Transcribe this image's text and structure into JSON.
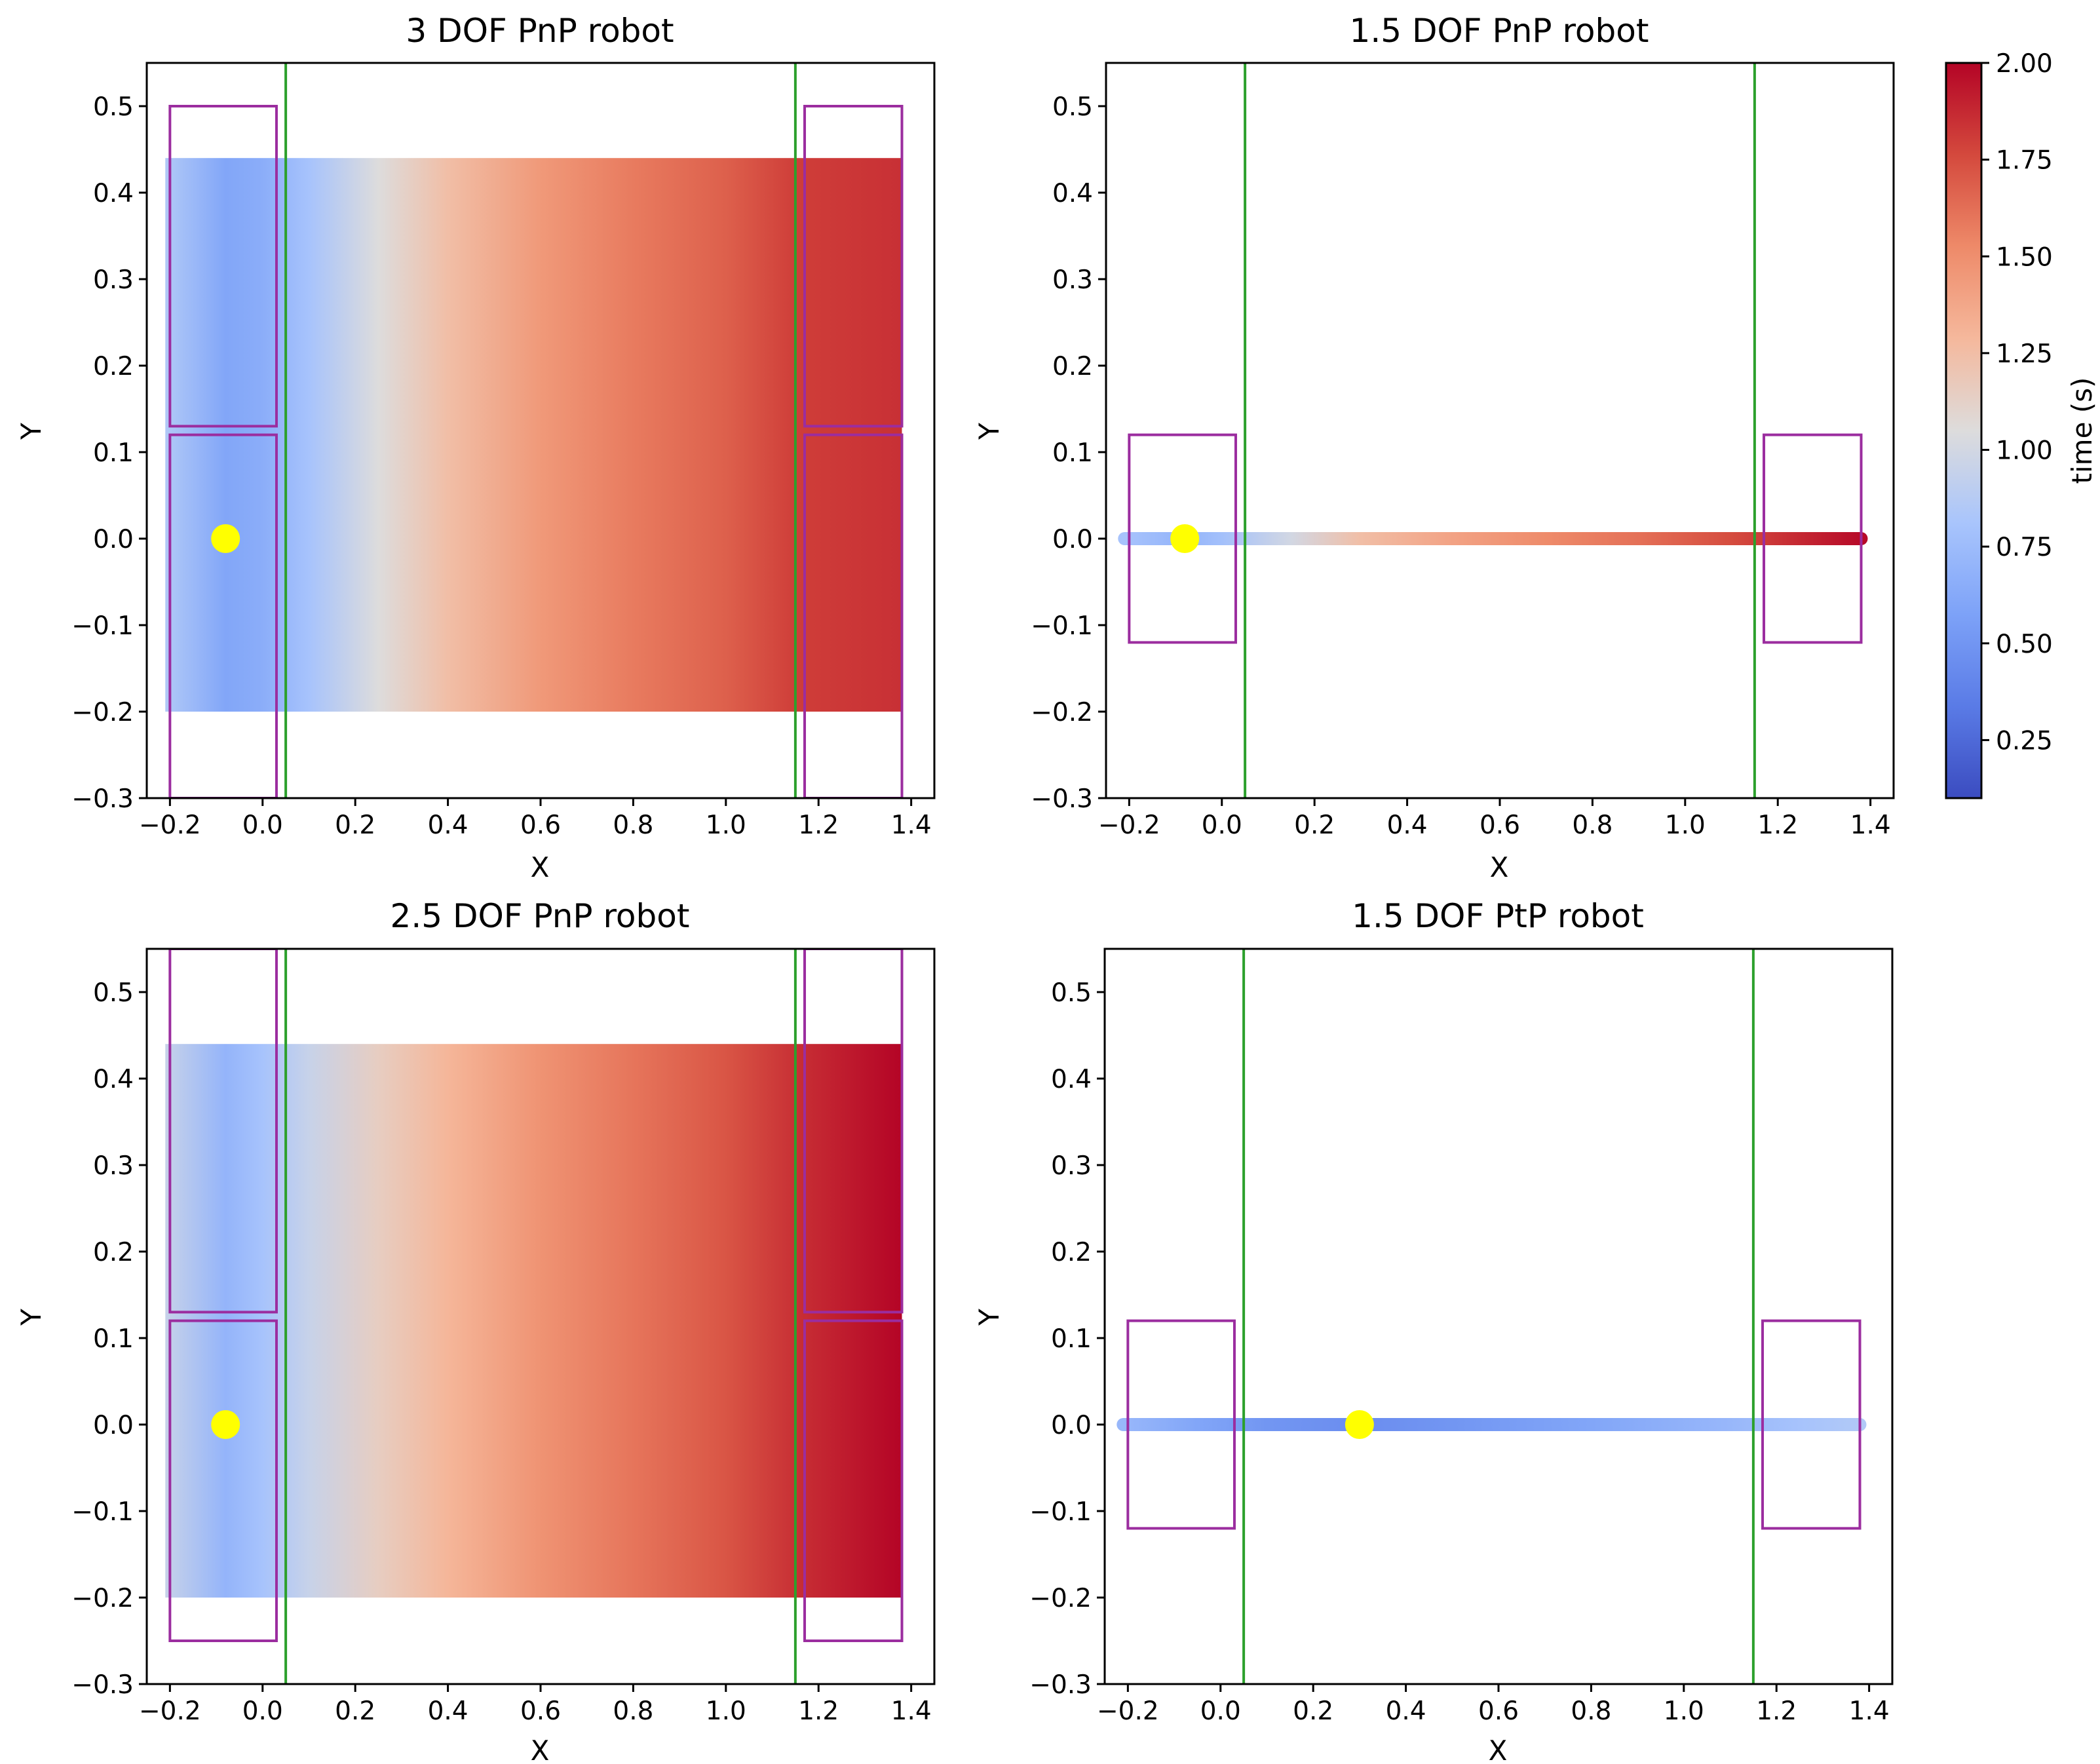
{
  "colormap": {
    "stops": [
      [
        0.0,
        "#3b4cc0"
      ],
      [
        0.125,
        "#5a7be6"
      ],
      [
        0.25,
        "#7da2f8"
      ],
      [
        0.375,
        "#a9c5fc"
      ],
      [
        0.5,
        "#dddcdc"
      ],
      [
        0.625,
        "#f5b89c"
      ],
      [
        0.75,
        "#ee8a69"
      ],
      [
        0.875,
        "#d4493d"
      ],
      [
        1.0,
        "#b40426"
      ]
    ]
  },
  "colors": {
    "frame": "#000000",
    "boundary_line": "#2ca02c",
    "workspace_box": "#9b2d9f",
    "marker": "#ffff00"
  },
  "colorbar": {
    "label": "time (s)",
    "vmin": 0.1,
    "vmax": 2.0,
    "ticks": [
      "0.25",
      "0.50",
      "0.75",
      "1.00",
      "1.25",
      "1.50",
      "1.75",
      "2.00"
    ],
    "tick_values": [
      0.25,
      0.5,
      0.75,
      1.0,
      1.25,
      1.5,
      1.75,
      2.0
    ]
  },
  "chart_data": [
    {
      "type": "heatmap",
      "title": "3 DOF PnP robot",
      "xlabel": "X",
      "ylabel": "Y",
      "xlim": [
        -0.25,
        1.45
      ],
      "ylim": [
        -0.3,
        0.55
      ],
      "xticks": [
        "−0.2",
        "0.0",
        "0.2",
        "0.4",
        "0.6",
        "0.8",
        "1.0",
        "1.2",
        "1.4"
      ],
      "xtick_values": [
        -0.2,
        0.0,
        0.2,
        0.4,
        0.6,
        0.8,
        1.0,
        1.2,
        1.4
      ],
      "yticks": [
        "−0.3",
        "−0.2",
        "−0.1",
        "0.0",
        "0.1",
        "0.2",
        "0.3",
        "0.4",
        "0.5"
      ],
      "ytick_values": [
        -0.3,
        -0.2,
        -0.1,
        0.0,
        0.1,
        0.2,
        0.3,
        0.4,
        0.5
      ],
      "region": {
        "x": [
          -0.21,
          1.38
        ],
        "y": [
          -0.2,
          0.44
        ]
      },
      "time_profile_x": [
        -0.21,
        -0.08,
        0.0,
        0.1,
        0.25,
        0.4,
        0.6,
        0.8,
        1.0,
        1.15,
        1.38
      ],
      "time_profile_t": [
        0.85,
        0.6,
        0.65,
        0.8,
        1.05,
        1.25,
        1.45,
        1.58,
        1.68,
        1.8,
        1.85
      ],
      "vertical_lines_x": [
        0.05,
        1.15
      ],
      "workspace_boxes": [
        {
          "x": [
            -0.2,
            0.03
          ],
          "y": [
            0.13,
            0.5
          ]
        },
        {
          "x": [
            -0.2,
            0.03
          ],
          "y": [
            -0.3,
            0.12
          ]
        },
        {
          "x": [
            1.17,
            1.38
          ],
          "y": [
            0.13,
            0.5
          ]
        },
        {
          "x": [
            1.17,
            1.38
          ],
          "y": [
            -0.3,
            0.12
          ]
        }
      ],
      "start_point": {
        "x": -0.08,
        "y": 0.0
      }
    },
    {
      "type": "line",
      "title": "1.5 DOF PnP robot",
      "xlabel": "X",
      "ylabel": "Y",
      "xlim": [
        -0.25,
        1.45
      ],
      "ylim": [
        -0.3,
        0.55
      ],
      "xticks": [
        "−0.2",
        "0.0",
        "0.2",
        "0.4",
        "0.6",
        "0.8",
        "1.0",
        "1.2",
        "1.4"
      ],
      "xtick_values": [
        -0.2,
        0.0,
        0.2,
        0.4,
        0.6,
        0.8,
        1.0,
        1.2,
        1.4
      ],
      "yticks": [
        "−0.3",
        "−0.2",
        "−0.1",
        "0.0",
        "0.1",
        "0.2",
        "0.3",
        "0.4",
        "0.5"
      ],
      "ytick_values": [
        -0.3,
        -0.2,
        -0.1,
        0.0,
        0.1,
        0.2,
        0.3,
        0.4,
        0.5
      ],
      "line": {
        "x": [
          -0.21,
          1.38
        ],
        "y": 0.0
      },
      "time_profile_x": [
        -0.21,
        -0.08,
        0.0,
        0.15,
        0.3,
        0.5,
        0.7,
        0.9,
        1.1,
        1.25,
        1.38
      ],
      "time_profile_t": [
        0.8,
        0.7,
        0.78,
        1.0,
        1.25,
        1.4,
        1.52,
        1.62,
        1.75,
        1.88,
        1.98
      ],
      "vertical_lines_x": [
        0.05,
        1.15
      ],
      "workspace_boxes": [
        {
          "x": [
            -0.2,
            0.03
          ],
          "y": [
            -0.12,
            0.12
          ]
        },
        {
          "x": [
            1.17,
            1.38
          ],
          "y": [
            -0.12,
            0.12
          ]
        }
      ],
      "start_point": {
        "x": -0.08,
        "y": 0.0
      }
    },
    {
      "type": "heatmap",
      "title": "2.5 DOF PnP robot",
      "xlabel": "X",
      "ylabel": "Y",
      "xlim": [
        -0.25,
        1.45
      ],
      "ylim": [
        -0.3,
        0.55
      ],
      "xticks": [
        "−0.2",
        "0.0",
        "0.2",
        "0.4",
        "0.6",
        "0.8",
        "1.0",
        "1.2",
        "1.4"
      ],
      "xtick_values": [
        -0.2,
        0.0,
        0.2,
        0.4,
        0.6,
        0.8,
        1.0,
        1.2,
        1.4
      ],
      "yticks": [
        "−0.3",
        "−0.2",
        "−0.1",
        "0.0",
        "0.1",
        "0.2",
        "0.3",
        "0.4",
        "0.5"
      ],
      "ytick_values": [
        -0.3,
        -0.2,
        -0.1,
        0.0,
        0.1,
        0.2,
        0.3,
        0.4,
        0.5
      ],
      "region": {
        "x": [
          -0.21,
          1.38
        ],
        "y": [
          -0.2,
          0.44
        ]
      },
      "time_profile_x": [
        -0.21,
        -0.08,
        0.0,
        0.1,
        0.25,
        0.4,
        0.6,
        0.8,
        1.0,
        1.15,
        1.3,
        1.38
      ],
      "time_profile_t": [
        0.95,
        0.7,
        0.8,
        0.95,
        1.15,
        1.3,
        1.48,
        1.6,
        1.72,
        1.85,
        1.95,
        2.0
      ],
      "vertical_lines_x": [
        0.05,
        1.15
      ],
      "workspace_boxes": [
        {
          "x": [
            -0.2,
            0.03
          ],
          "y": [
            0.13,
            0.55
          ]
        },
        {
          "x": [
            -0.2,
            0.03
          ],
          "y": [
            -0.25,
            0.12
          ]
        },
        {
          "x": [
            1.17,
            1.38
          ],
          "y": [
            0.13,
            0.55
          ]
        },
        {
          "x": [
            1.17,
            1.38
          ],
          "y": [
            -0.25,
            0.12
          ]
        }
      ],
      "start_point": {
        "x": -0.08,
        "y": 0.0
      }
    },
    {
      "type": "line",
      "title": "1.5 DOF PtP robot",
      "xlabel": "X",
      "ylabel": "Y",
      "xlim": [
        -0.25,
        1.45
      ],
      "ylim": [
        -0.3,
        0.55
      ],
      "xticks": [
        "−0.2",
        "0.0",
        "0.2",
        "0.4",
        "0.6",
        "0.8",
        "1.0",
        "1.2",
        "1.4"
      ],
      "xtick_values": [
        -0.2,
        0.0,
        0.2,
        0.4,
        0.6,
        0.8,
        1.0,
        1.2,
        1.4
      ],
      "yticks": [
        "−0.3",
        "−0.2",
        "−0.1",
        "0.0",
        "0.1",
        "0.2",
        "0.3",
        "0.4",
        "0.5"
      ],
      "ytick_values": [
        -0.3,
        -0.2,
        -0.1,
        0.0,
        0.1,
        0.2,
        0.3,
        0.4,
        0.5
      ],
      "line": {
        "x": [
          -0.21,
          1.38
        ],
        "y": 0.0
      },
      "time_profile_x": [
        -0.21,
        -0.05,
        0.1,
        0.3,
        0.5,
        0.8,
        1.1,
        1.25,
        1.38
      ],
      "time_profile_t": [
        0.72,
        0.6,
        0.5,
        0.45,
        0.5,
        0.6,
        0.72,
        0.8,
        0.85
      ],
      "vertical_lines_x": [
        0.05,
        1.15
      ],
      "workspace_boxes": [
        {
          "x": [
            -0.2,
            0.03
          ],
          "y": [
            -0.12,
            0.12
          ]
        },
        {
          "x": [
            1.17,
            1.38
          ],
          "y": [
            -0.12,
            0.12
          ]
        }
      ],
      "start_point": {
        "x": 0.3,
        "y": 0.0
      }
    }
  ]
}
